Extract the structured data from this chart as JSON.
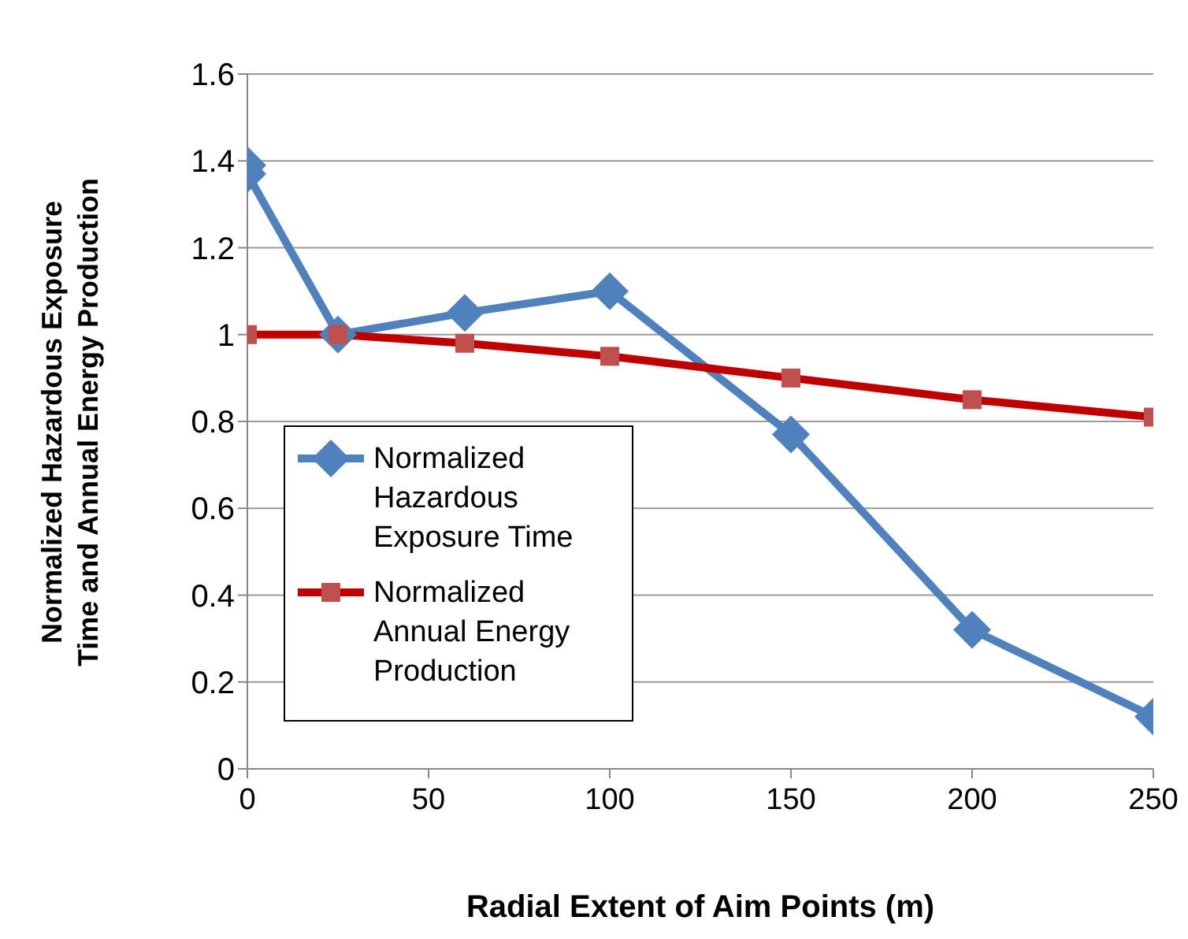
{
  "chart_data": {
    "type": "line",
    "xlabel": "Radial Extent of Aim Points (m)",
    "ylabel": "Normalized Hazardous Exposure Time and Annual Energy Production",
    "xlim": [
      0,
      250
    ],
    "xticks": [
      0,
      50,
      100,
      150,
      200,
      250
    ],
    "ylim": [
      0,
      1.6
    ],
    "yticks": [
      0,
      {
        "value": 0.2,
        "label": "0.2"
      },
      {
        "value": 0.4,
        "label": "0.4"
      },
      {
        "value": 0.6,
        "label": "0.6"
      },
      {
        "value": 0.8,
        "label": "0.8"
      },
      1,
      {
        "value": 1.2,
        "label": "1.2"
      },
      {
        "value": 1.4,
        "label": "1.4"
      },
      {
        "value": 1.6,
        "label": "1.6"
      }
    ],
    "grid": "y",
    "legend": "left",
    "line_style": "solid",
    "series": [
      {
        "name": "Normalized Hazardous Exposure Time",
        "color": "#4f81bd",
        "marker": "diamond",
        "x": [
          0,
          0,
          25,
          60,
          100,
          150,
          200,
          250
        ],
        "values": [
          1.39,
          1.37,
          1.0,
          1.05,
          1.1,
          0.77,
          0.32,
          0.12
        ]
      },
      {
        "name": "Normalized Annual Energy Production",
        "color": "#c00000",
        "marker": "square",
        "x": [
          0,
          25,
          60,
          100,
          150,
          200,
          250
        ],
        "values": [
          1.0,
          1.0,
          0.98,
          0.95,
          0.9,
          0.85,
          0.81
        ]
      }
    ]
  }
}
